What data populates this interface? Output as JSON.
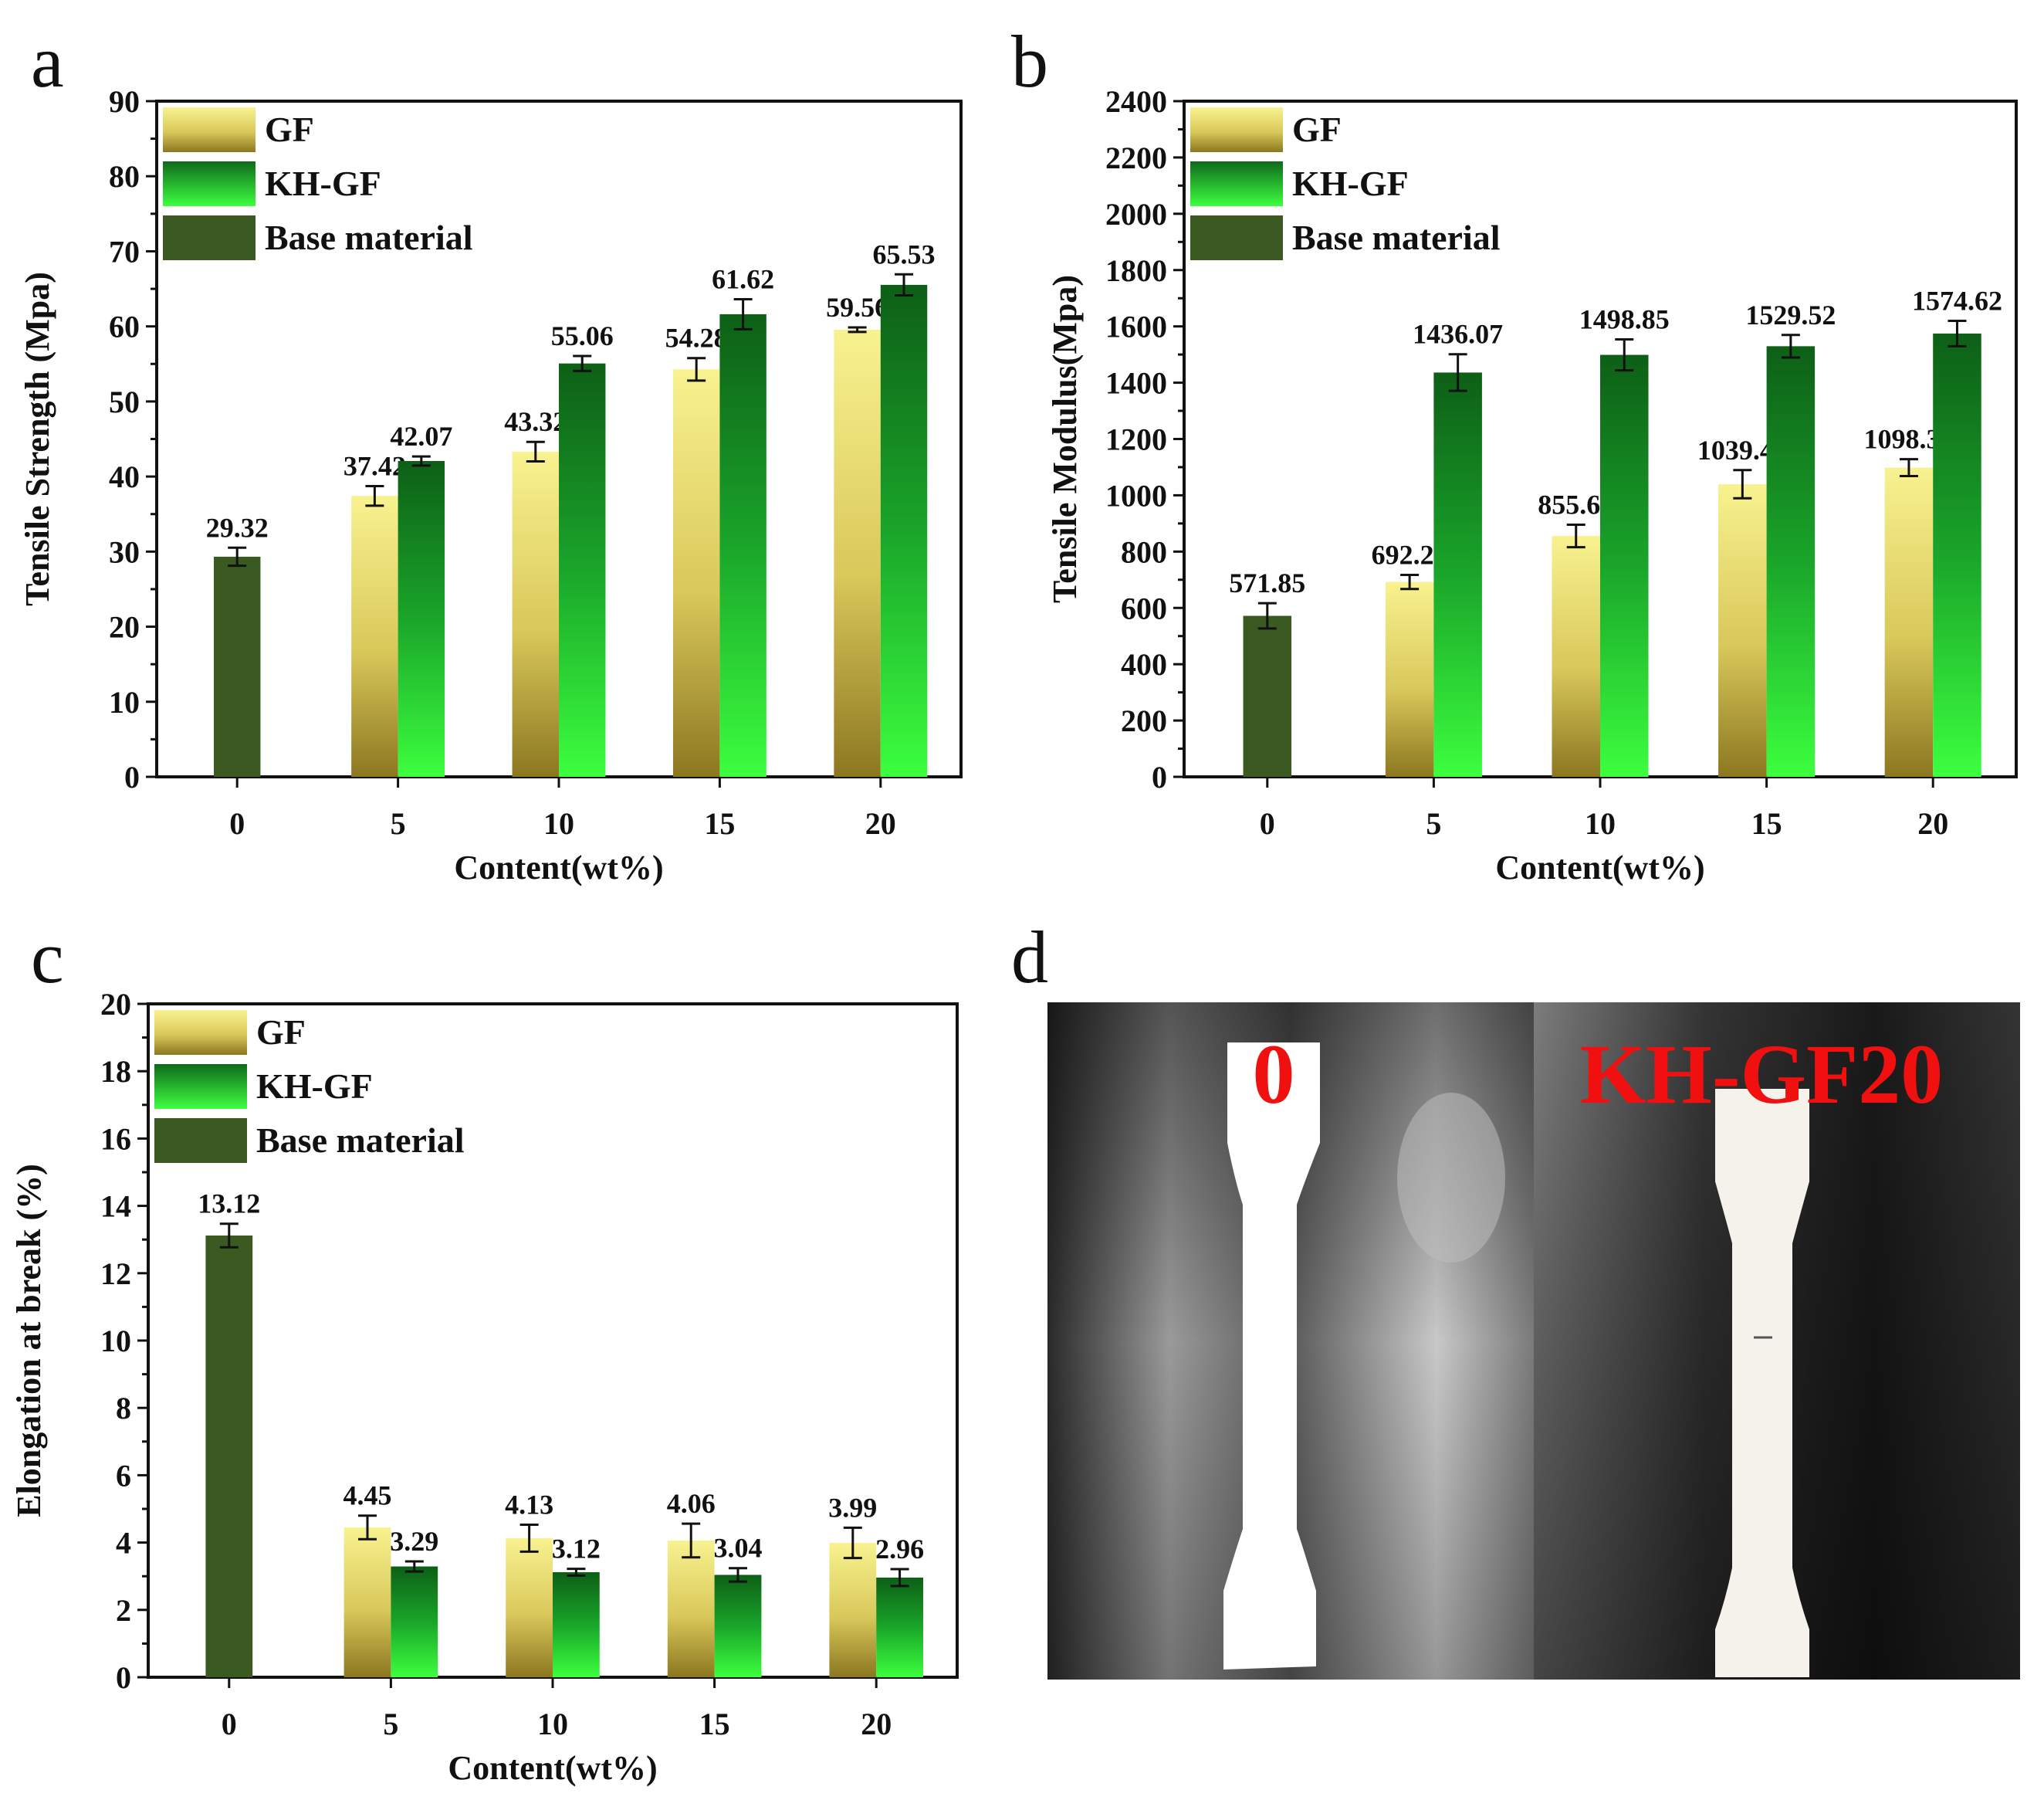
{
  "colors": {
    "gf_light": "#f7f08a",
    "gf_dark": "#8f7a22",
    "kh_dark": "#0e6418",
    "kh_light": "#39ff3b",
    "base": "#3b5a22",
    "axis": "#111111",
    "photo_label": "#f01010"
  },
  "chart_data": [
    {
      "panel": "a",
      "type": "bar",
      "title": "",
      "xlabel": "Content(wt%)",
      "ylabel": "Tensile Strength (Mpa)",
      "ylim": [
        0,
        90
      ],
      "yticks": [
        0,
        10,
        20,
        30,
        40,
        50,
        60,
        70,
        80,
        90
      ],
      "categories": [
        "0",
        "5",
        "10",
        "15",
        "20"
      ],
      "legend": {
        "position": "top-left",
        "entries": [
          "GF",
          "KH-GF",
          "Base material"
        ]
      },
      "series": [
        {
          "name": "Base material",
          "values": [
            29.32,
            null,
            null,
            null,
            null
          ],
          "labels": [
            "29.32",
            "",
            "",
            "",
            ""
          ],
          "errors": [
            1.2,
            null,
            null,
            null,
            null
          ]
        },
        {
          "name": "GF",
          "values": [
            null,
            37.42,
            43.32,
            54.28,
            59.56
          ],
          "labels": [
            "",
            "37.42",
            "43.32",
            "54.28",
            "59.56"
          ],
          "errors": [
            null,
            1.3,
            1.3,
            1.5,
            0.3
          ]
        },
        {
          "name": "KH-GF",
          "values": [
            null,
            42.07,
            55.06,
            61.62,
            65.53
          ],
          "labels": [
            "",
            "42.07",
            "55.06",
            "61.62",
            "65.53"
          ],
          "errors": [
            null,
            0.6,
            1.0,
            2.0,
            1.4
          ]
        }
      ]
    },
    {
      "panel": "b",
      "type": "bar",
      "title": "",
      "xlabel": "Content(wt%)",
      "ylabel": "Tensile Modulus(Mpa)",
      "ylim": [
        0,
        2400
      ],
      "yticks": [
        0,
        200,
        400,
        600,
        800,
        1000,
        1200,
        1400,
        1600,
        1800,
        2000,
        2200,
        2400
      ],
      "categories": [
        "0",
        "5",
        "10",
        "15",
        "20"
      ],
      "legend": {
        "position": "top-left",
        "entries": [
          "GF",
          "KH-GF",
          "Base material"
        ]
      },
      "series": [
        {
          "name": "Base material",
          "values": [
            571.85,
            null,
            null,
            null,
            null
          ],
          "labels": [
            "571.85",
            "",
            "",
            "",
            ""
          ],
          "errors": [
            45,
            null,
            null,
            null,
            null
          ]
        },
        {
          "name": "GF",
          "values": [
            null,
            692.25,
            855.62,
            1039.46,
            1098.31
          ],
          "labels": [
            "",
            "692.25",
            "855.62",
            "1039.46",
            "1098.31"
          ],
          "errors": [
            null,
            25,
            40,
            50,
            30
          ]
        },
        {
          "name": "KH-GF",
          "values": [
            null,
            1436.07,
            1498.85,
            1529.52,
            1574.62
          ],
          "labels": [
            "",
            "1436.07",
            "1498.85",
            "1529.52",
            "1574.62"
          ],
          "errors": [
            null,
            65,
            55,
            40,
            45
          ]
        }
      ]
    },
    {
      "panel": "c",
      "type": "bar",
      "title": "",
      "xlabel": "Content(wt%)",
      "ylabel": "Elongation at break (%)",
      "ylim": [
        0,
        20
      ],
      "yticks": [
        0,
        2,
        4,
        6,
        8,
        10,
        12,
        14,
        16,
        18,
        20
      ],
      "categories": [
        "0",
        "5",
        "10",
        "15",
        "20"
      ],
      "legend": {
        "position": "top-left",
        "entries": [
          "GF",
          "KH-GF",
          "Base material"
        ]
      },
      "series": [
        {
          "name": "Base material",
          "values": [
            13.12,
            null,
            null,
            null,
            null
          ],
          "labels": [
            "13.12",
            "",
            "",
            "",
            ""
          ],
          "errors": [
            0.35,
            null,
            null,
            null,
            null
          ]
        },
        {
          "name": "GF",
          "values": [
            null,
            4.45,
            4.13,
            4.06,
            3.99
          ],
          "labels": [
            "",
            "4.45",
            "4.13",
            "4.06",
            "3.99"
          ],
          "errors": [
            null,
            0.35,
            0.4,
            0.5,
            0.45
          ]
        },
        {
          "name": "KH-GF",
          "values": [
            null,
            3.29,
            3.12,
            3.04,
            2.96
          ],
          "labels": [
            "",
            "3.29",
            "3.12",
            "3.04",
            "2.96"
          ],
          "errors": [
            null,
            0.15,
            0.1,
            0.2,
            0.25
          ]
        }
      ]
    }
  ],
  "photo": {
    "panel": "d",
    "left_label": "0",
    "right_label": "KH-GF20"
  }
}
